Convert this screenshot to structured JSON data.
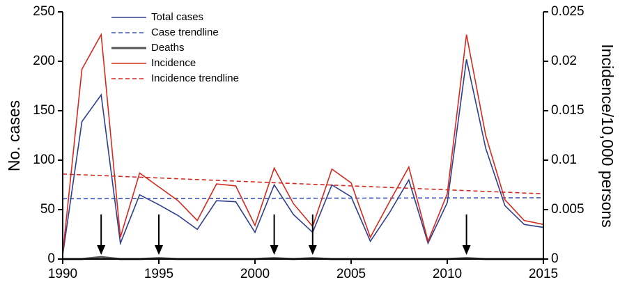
{
  "chart_data": {
    "type": "line",
    "x": [
      1990,
      1991,
      1992,
      1993,
      1994,
      1995,
      1996,
      1997,
      1998,
      1999,
      2000,
      2001,
      2002,
      2003,
      2004,
      2005,
      2006,
      2007,
      2008,
      2009,
      2010,
      2011,
      2012,
      2013,
      2014,
      2015
    ],
    "series": [
      {
        "name": "Total cases",
        "color": "#2e3d8f",
        "linestyle": "solid",
        "values": [
          4,
          139,
          166,
          16,
          65,
          55,
          44,
          30,
          59,
          58,
          27,
          75,
          45,
          27,
          75,
          63,
          18,
          47,
          80,
          16,
          57,
          202,
          112,
          54,
          35,
          32
        ]
      },
      {
        "name": "Case trendline",
        "color": "#3a52b0",
        "linestyle": "dashed",
        "x": [
          1990,
          2015
        ],
        "values": [
          61,
          62
        ]
      },
      {
        "name": "Deaths",
        "color": "#555555",
        "linestyle": "solid",
        "width": 3,
        "values": [
          0,
          0,
          2,
          0,
          0,
          1,
          0,
          0,
          0,
          0,
          0,
          1,
          0,
          1,
          0,
          0,
          0,
          0,
          0,
          0,
          0,
          1,
          0,
          0,
          0,
          0
        ]
      },
      {
        "name": "Incidence",
        "color": "#d42a20",
        "linestyle": "solid",
        "axis": "y2",
        "values": [
          0.0005,
          0.0192,
          0.0227,
          0.0022,
          0.0087,
          0.0073,
          0.0059,
          0.0039,
          0.0076,
          0.0074,
          0.0034,
          0.0092,
          0.0056,
          0.0033,
          0.0091,
          0.0077,
          0.0022,
          0.0058,
          0.0093,
          0.0018,
          0.0066,
          0.0227,
          0.0125,
          0.006,
          0.0039,
          0.0035
        ]
      },
      {
        "name": "Incidence trendline",
        "color": "#d42a20",
        "linestyle": "dashed",
        "axis": "y2",
        "x": [
          1990,
          2015
        ],
        "values": [
          0.0086,
          0.0066
        ]
      }
    ],
    "arrows": [
      1992,
      1995,
      2001,
      2003,
      2011
    ],
    "ylabel": "No. cases",
    "y2label": "Incidence/10,000 persons",
    "xlim": [
      1990,
      2015
    ],
    "xticks": [
      1990,
      1995,
      2000,
      2005,
      2010,
      2015
    ],
    "ylim": [
      0,
      250
    ],
    "yticks": [
      0,
      50,
      100,
      150,
      200,
      250
    ],
    "y2lim": [
      0,
      0.025
    ],
    "y2ticks": [
      0,
      0.005,
      0.01,
      0.015,
      0.02,
      0.025
    ],
    "legend": "upper left"
  }
}
